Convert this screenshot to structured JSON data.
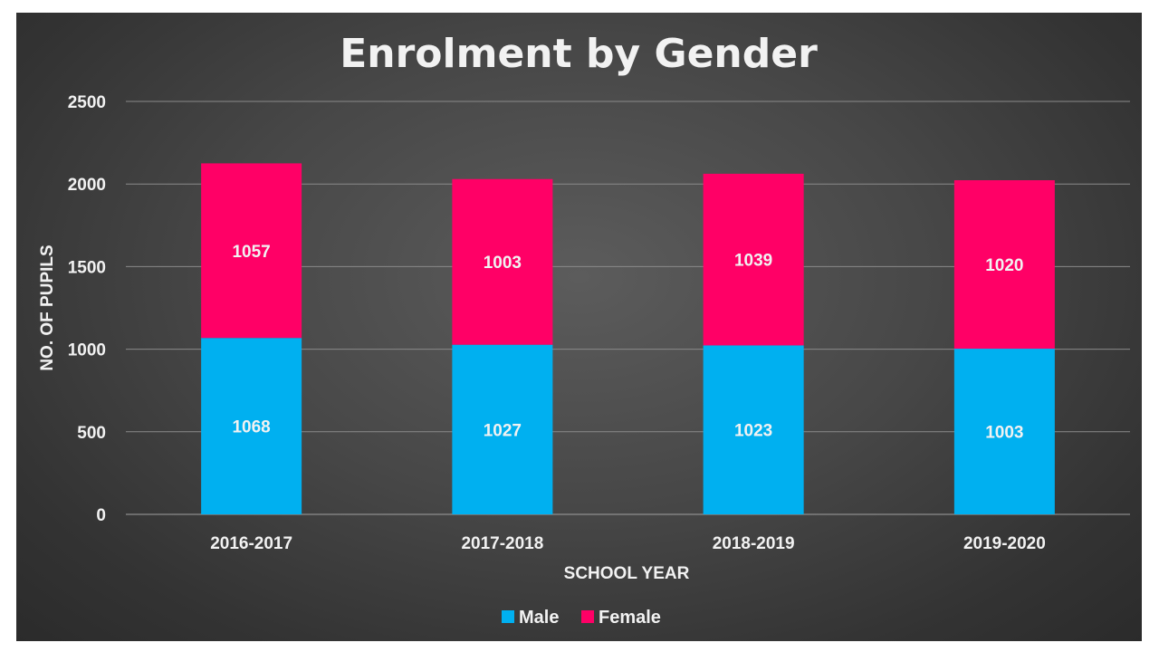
{
  "chart_data": {
    "type": "bar",
    "stacked": true,
    "title": "Enrolment by Gender",
    "xlabel": "SCHOOL YEAR",
    "ylabel": "NO. OF PUPILS",
    "categories": [
      "2016-2017",
      "2017-2018",
      "2018-2019",
      "2019-2020"
    ],
    "series": [
      {
        "name": "Male",
        "color": "#00b0f0",
        "values": [
          1068,
          1027,
          1023,
          1003
        ]
      },
      {
        "name": "Female",
        "color": "#ff0066",
        "values": [
          1057,
          1003,
          1039,
          1020
        ]
      }
    ],
    "ylim": [
      0,
      2500
    ],
    "yticks": [
      0,
      500,
      1000,
      1500,
      2000,
      2500
    ],
    "grid": true,
    "legend": "bottom-center",
    "background": "#404040"
  }
}
